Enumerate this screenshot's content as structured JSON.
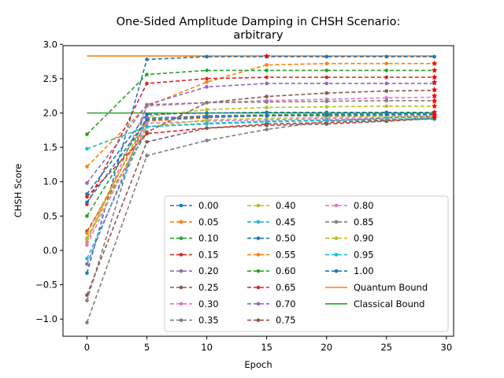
{
  "chart_data": {
    "type": "line",
    "title": [
      "One-Sided Amplitude Damping in CHSH Scenario:",
      "arbitrary"
    ],
    "xlabel": "Epoch",
    "ylabel": "CHSH Score",
    "xlim": [
      -2.0,
      30.6
    ],
    "ylim": [
      -1.25,
      2.98
    ],
    "xticks": [
      0,
      5,
      10,
      15,
      20,
      25,
      30
    ],
    "yticks": [
      -1.0,
      -0.5,
      0.0,
      0.5,
      1.0,
      1.5,
      2.0,
      2.5,
      3.0
    ],
    "x": [
      0,
      5,
      10,
      15,
      20,
      25,
      29
    ],
    "legend_position": "lower right",
    "grid": false,
    "series": [
      {
        "name": "0.00",
        "color": "#1f77b4",
        "values": [
          -0.33,
          2.78,
          2.82,
          2.82,
          2.82,
          2.82,
          2.82
        ]
      },
      {
        "name": "0.05",
        "color": "#ff7f0e",
        "values": [
          1.22,
          2.1,
          2.45,
          2.7,
          2.72,
          2.72,
          2.72
        ]
      },
      {
        "name": "0.10",
        "color": "#2ca02c",
        "values": [
          1.69,
          2.56,
          2.62,
          2.62,
          2.62,
          2.62,
          2.62
        ]
      },
      {
        "name": "0.15",
        "color": "#d62728",
        "values": [
          0.67,
          2.43,
          2.5,
          2.52,
          2.52,
          2.52,
          2.52
        ]
      },
      {
        "name": "0.20",
        "color": "#9467bd",
        "values": [
          0.98,
          2.12,
          2.38,
          2.43,
          2.43,
          2.43,
          2.43
        ]
      },
      {
        "name": "0.25",
        "color": "#8c564b",
        "values": [
          0.28,
          1.72,
          2.15,
          2.24,
          2.29,
          2.32,
          2.33
        ]
      },
      {
        "name": "0.30",
        "color": "#e377c2",
        "values": [
          0.12,
          2.1,
          2.15,
          2.18,
          2.2,
          2.22,
          2.23
        ]
      },
      {
        "name": "0.35",
        "color": "#7f7f7f",
        "values": [
          -0.73,
          2.12,
          2.15,
          2.16,
          2.17,
          2.18,
          2.18
        ]
      },
      {
        "name": "0.40",
        "color": "#bcbd22",
        "values": [
          0.18,
          1.95,
          2.05,
          2.08,
          2.09,
          2.1,
          2.1
        ]
      },
      {
        "name": "0.45",
        "color": "#17becf",
        "values": [
          -0.12,
          1.8,
          1.84,
          1.87,
          1.89,
          1.9,
          1.91
        ]
      },
      {
        "name": "0.50",
        "color": "#1f77b4",
        "values": [
          0.82,
          1.98,
          2.0,
          2.01,
          2.01,
          2.01,
          2.01
        ]
      },
      {
        "name": "0.55",
        "color": "#ff7f0e",
        "values": [
          0.25,
          1.88,
          1.93,
          1.96,
          1.97,
          1.98,
          1.98
        ]
      },
      {
        "name": "0.60",
        "color": "#2ca02c",
        "values": [
          0.5,
          1.92,
          1.96,
          1.97,
          1.98,
          1.98,
          1.98
        ]
      },
      {
        "name": "0.65",
        "color": "#d62728",
        "values": [
          0.78,
          1.7,
          1.78,
          1.84,
          1.86,
          1.89,
          1.93
        ]
      },
      {
        "name": "0.70",
        "color": "#9467bd",
        "values": [
          -0.2,
          1.93,
          1.95,
          1.96,
          1.96,
          1.96,
          1.96
        ]
      },
      {
        "name": "0.75",
        "color": "#8c564b",
        "values": [
          -0.65,
          1.58,
          1.78,
          1.82,
          1.84,
          1.88,
          1.92
        ]
      },
      {
        "name": "0.80",
        "color": "#e377c2",
        "values": [
          0.08,
          1.85,
          1.88,
          1.9,
          1.92,
          1.93,
          1.94
        ]
      },
      {
        "name": "0.85",
        "color": "#7f7f7f",
        "values": [
          -1.05,
          1.38,
          1.6,
          1.76,
          1.88,
          1.93,
          1.95
        ]
      },
      {
        "name": "0.90",
        "color": "#bcbd22",
        "values": [
          0.16,
          1.8,
          1.9,
          1.92,
          1.94,
          1.95,
          1.96
        ]
      },
      {
        "name": "0.95",
        "color": "#17becf",
        "values": [
          1.48,
          1.8,
          1.85,
          1.88,
          1.9,
          1.91,
          1.92
        ]
      },
      {
        "name": "1.00",
        "color": "#1f77b4",
        "values": [
          0.7,
          1.9,
          1.94,
          1.96,
          1.97,
          1.98,
          1.98
        ]
      }
    ],
    "reference_lines": [
      {
        "name": "Quantum Bound",
        "color": "#ff7f0e",
        "value": 2.83
      },
      {
        "name": "Classical Bound",
        "color": "#2ca02c",
        "value": 2.0
      }
    ],
    "annotations": [
      {
        "type": "star-marker",
        "color": "#ff0000",
        "x": 15,
        "y": 2.83
      },
      {
        "type": "star-marker",
        "color": "#ff0000",
        "x": 29,
        "y": 2.72
      },
      {
        "type": "star-marker",
        "color": "#ff0000",
        "x": 29,
        "y": 2.62
      },
      {
        "type": "star-marker",
        "color": "#ff0000",
        "x": 29,
        "y": 2.52
      },
      {
        "type": "star-marker",
        "color": "#ff0000",
        "x": 29,
        "y": 2.45
      },
      {
        "type": "star-marker",
        "color": "#ff0000",
        "x": 29,
        "y": 2.34
      },
      {
        "type": "star-marker",
        "color": "#ff0000",
        "x": 29,
        "y": 2.25
      },
      {
        "type": "star-marker",
        "color": "#ff0000",
        "x": 29,
        "y": 2.17
      },
      {
        "type": "star-marker",
        "color": "#ff0000",
        "x": 29,
        "y": 2.1
      },
      {
        "type": "star-marker",
        "color": "#ff0000",
        "x": 29,
        "y": 2.01
      },
      {
        "type": "star-marker",
        "color": "#ff0000",
        "x": 29,
        "y": 1.97
      },
      {
        "type": "star-marker",
        "color": "#ff0000",
        "x": 29,
        "y": 1.93
      }
    ]
  }
}
